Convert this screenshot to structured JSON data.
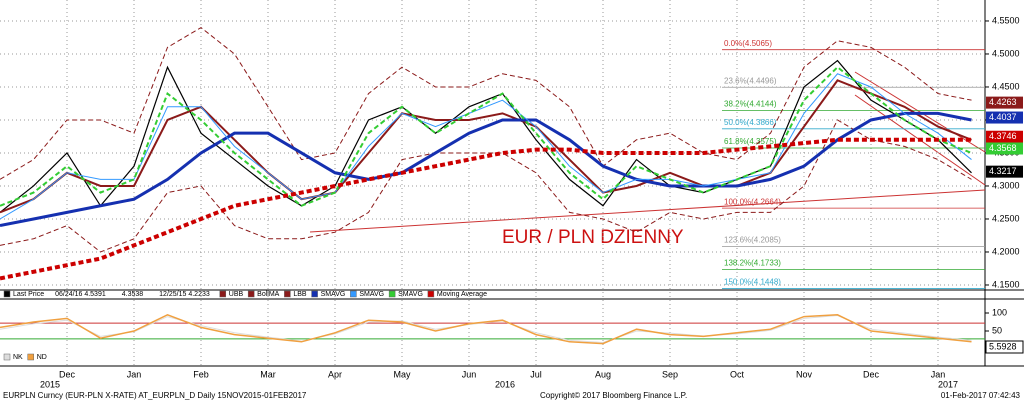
{
  "chart_data": [
    {
      "type": "line",
      "annotation": "EUR / PLN DZIENNY",
      "categories": [
        null,
        null,
        "Dec",
        null,
        "Jan",
        null,
        "Feb",
        null,
        "Mar",
        null,
        "Apr",
        null,
        "May",
        null,
        "Jun",
        null,
        "Jul",
        null,
        "Aug",
        null,
        "Sep",
        null,
        "Oct",
        null,
        "Nov",
        null,
        "Dec",
        null,
        "Jan",
        null
      ],
      "years": [
        "2015",
        "2016",
        "2017"
      ],
      "ylim": [
        4.1424,
        4.5742
      ],
      "yticks": [
        {
          "value": 4.15,
          "label": "4.1500"
        },
        {
          "value": 4.2,
          "label": "4.2000"
        },
        {
          "value": 4.25,
          "label": "4.2500"
        },
        {
          "value": 4.3,
          "label": "4.3000"
        },
        {
          "value": 4.35,
          "label": "4.3500"
        },
        {
          "value": 4.4,
          "label": "4.4000"
        },
        {
          "value": 4.45,
          "label": "4.4500"
        },
        {
          "value": 4.5,
          "label": "4.5000"
        },
        {
          "value": 4.55,
          "label": "4.5500"
        }
      ],
      "grid": true,
      "legend_extra": [
        "06/24/16 4.5391",
        "4.3538",
        "12/25/15 4.2233"
      ],
      "series": [
        {
          "name": "Last Price",
          "color": "#000000",
          "width": 1.2,
          "dash": false,
          "values": [
            4.26,
            4.3,
            4.35,
            4.27,
            4.33,
            4.48,
            4.38,
            4.34,
            4.3,
            4.27,
            4.3,
            4.4,
            4.42,
            4.38,
            4.42,
            4.44,
            4.37,
            4.31,
            4.27,
            4.34,
            4.3,
            4.29,
            4.31,
            4.33,
            4.45,
            4.49,
            4.43,
            4.4,
            4.37,
            4.32
          ]
        },
        {
          "name": "UBB",
          "color": "#8b1a1a",
          "width": 1,
          "dash": true,
          "values": [
            4.31,
            4.34,
            4.4,
            4.4,
            4.38,
            4.51,
            4.54,
            4.5,
            4.42,
            4.34,
            4.35,
            4.44,
            4.48,
            4.45,
            4.45,
            4.47,
            4.46,
            4.42,
            4.33,
            4.37,
            4.38,
            4.35,
            4.34,
            4.38,
            4.48,
            4.52,
            4.51,
            4.48,
            4.44,
            4.43
          ]
        },
        {
          "name": "BollMA",
          "color": "#8b1a1a",
          "width": 2,
          "dash": false,
          "values": [
            4.26,
            4.28,
            4.32,
            4.3,
            4.3,
            4.4,
            4.42,
            4.37,
            4.32,
            4.28,
            4.29,
            4.35,
            4.41,
            4.4,
            4.4,
            4.41,
            4.39,
            4.34,
            4.29,
            4.3,
            4.32,
            4.3,
            4.3,
            4.32,
            4.39,
            4.46,
            4.44,
            4.42,
            4.39,
            4.37
          ]
        },
        {
          "name": "LBB",
          "color": "#8b1a1a",
          "width": 1,
          "dash": true,
          "values": [
            4.21,
            4.22,
            4.24,
            4.2,
            4.22,
            4.29,
            4.3,
            4.24,
            4.22,
            4.22,
            4.23,
            4.26,
            4.34,
            4.35,
            4.35,
            4.35,
            4.32,
            4.26,
            4.25,
            4.23,
            4.26,
            4.25,
            4.26,
            4.26,
            4.3,
            4.4,
            4.37,
            4.36,
            4.34,
            4.31
          ]
        },
        {
          "name": "SMAVG",
          "color": "#1530b0",
          "width": 3,
          "dash": false,
          "values": [
            4.24,
            4.25,
            4.26,
            4.27,
            4.28,
            4.31,
            4.35,
            4.38,
            4.38,
            4.35,
            4.32,
            4.31,
            4.32,
            4.35,
            4.38,
            4.4,
            4.4,
            4.37,
            4.33,
            4.31,
            4.3,
            4.3,
            4.3,
            4.31,
            4.33,
            4.37,
            4.4,
            4.41,
            4.41,
            4.4
          ]
        },
        {
          "name": "SMAVG",
          "color": "#3399ff",
          "width": 1,
          "dash": false,
          "values": [
            4.25,
            4.28,
            4.32,
            4.31,
            4.31,
            4.42,
            4.42,
            4.36,
            4.32,
            4.28,
            4.29,
            4.36,
            4.41,
            4.39,
            4.41,
            4.43,
            4.39,
            4.33,
            4.29,
            4.31,
            4.31,
            4.3,
            4.31,
            4.32,
            4.41,
            4.47,
            4.45,
            4.41,
            4.38,
            4.34
          ]
        },
        {
          "name": "SMAVG",
          "color": "#33cc33",
          "width": 2,
          "dash": true,
          "values": [
            4.27,
            4.29,
            4.33,
            4.29,
            4.31,
            4.44,
            4.4,
            4.35,
            4.31,
            4.27,
            4.29,
            4.38,
            4.42,
            4.38,
            4.41,
            4.44,
            4.38,
            4.32,
            4.28,
            4.33,
            4.31,
            4.29,
            4.31,
            4.33,
            4.43,
            4.48,
            4.44,
            4.4,
            4.37,
            4.35
          ]
        },
        {
          "name": "Moving Average",
          "color": "#cc0000",
          "width": 4,
          "dash": true,
          "values": [
            4.16,
            4.17,
            4.18,
            4.19,
            4.21,
            4.23,
            4.25,
            4.27,
            4.28,
            4.29,
            4.3,
            4.31,
            4.32,
            4.33,
            4.34,
            4.35,
            4.355,
            4.355,
            4.35,
            4.35,
            4.35,
            4.35,
            4.355,
            4.36,
            4.365,
            4.37,
            4.37,
            4.37,
            4.37,
            4.37
          ]
        }
      ],
      "price_tags": [
        {
          "value": 4.4263,
          "color": "#8b1a1a"
        },
        {
          "value": 4.4037,
          "color": "#1530b0"
        },
        {
          "value": 4.3746,
          "color": "#cc0000"
        },
        {
          "value": 4.3568,
          "color": "#33cc33"
        },
        {
          "value": 4.3217,
          "color": "#000000"
        }
      ],
      "fib_levels": [
        {
          "value": 4.5065,
          "label": "0.0%(4.5065)",
          "color": "#cc3333"
        },
        {
          "value": 4.4496,
          "label": "23.6%(4.4496)",
          "color": "#999999"
        },
        {
          "value": 4.4144,
          "label": "38.2%(4.4144)",
          "color": "#33aa33"
        },
        {
          "value": 4.3866,
          "label": "50.0%(4.3866)",
          "color": "#33aacc"
        },
        {
          "value": 4.3575,
          "label": "61.8%(4.3575)",
          "color": "#33aa33"
        },
        {
          "value": 4.2664,
          "label": "100.0%(4.2664)",
          "color": "#cc3333"
        },
        {
          "value": 4.2085,
          "label": "123.6%(4.2085)",
          "color": "#999999"
        },
        {
          "value": 4.1733,
          "label": "138.2%(4.1733)",
          "color": "#33aa33"
        },
        {
          "value": 4.1448,
          "label": "150.0%(4.1448)",
          "color": "#33aacc"
        }
      ]
    },
    {
      "type": "line",
      "ylim": [
        0,
        136.1
      ],
      "yticks": [
        50,
        100
      ],
      "levels": [
        {
          "value": 72,
          "color": "#cc3333"
        },
        {
          "value": 28,
          "color": "#33aa33"
        }
      ],
      "tag": 5.5928,
      "series": [
        {
          "name": "NK",
          "color": "#dddddd",
          "width": 1,
          "dash": false,
          "values": [
            55,
            70,
            80,
            35,
            48,
            90,
            65,
            45,
            33,
            22,
            42,
            75,
            78,
            55,
            68,
            78,
            45,
            24,
            18,
            50,
            44,
            36,
            42,
            52,
            85,
            93,
            55,
            44,
            33,
            24
          ]
        },
        {
          "name": "ND",
          "color": "#f0a040",
          "width": 1.5,
          "dash": false,
          "values": [
            60,
            75,
            85,
            30,
            50,
            95,
            60,
            40,
            30,
            20,
            45,
            80,
            75,
            50,
            70,
            80,
            40,
            20,
            15,
            55,
            40,
            35,
            45,
            55,
            90,
            95,
            50,
            40,
            30,
            20
          ]
        }
      ]
    }
  ],
  "footer": {
    "left": "EURPLN Curncy (EUR-PLN X-RATE) AT_EURPLN_D  Daily 15NOV2015-01FEB2017",
    "center": "Copyright© 2017 Bloomberg Finance L.P.",
    "right": "01-Feb-2017 07:42:43"
  }
}
